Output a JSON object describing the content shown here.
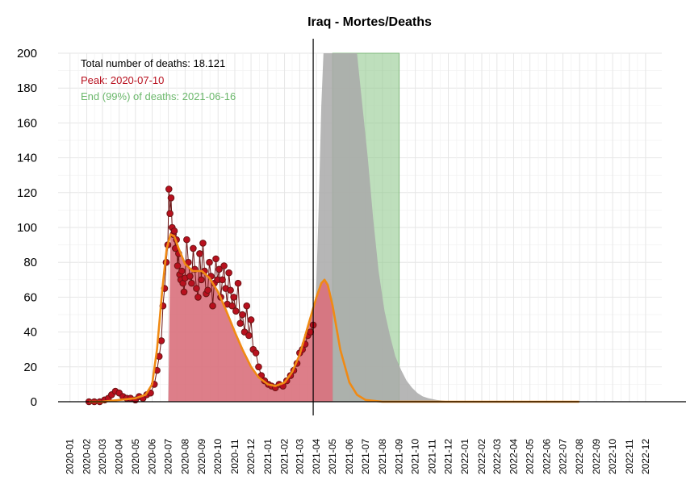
{
  "chart_data": {
    "type": "area",
    "title": "Iraq - Mortes/Deaths",
    "xlabel": "",
    "ylabel": "",
    "ylim": [
      0,
      200
    ],
    "xlim": [
      "2019-12-10",
      "2022-12-31"
    ],
    "y_ticks": [
      0,
      20,
      40,
      60,
      80,
      100,
      120,
      140,
      160,
      180,
      200
    ],
    "x_ticks": [
      "2020-01",
      "2020-02",
      "2020-03",
      "2020-04",
      "2020-05",
      "2020-06",
      "2020-07",
      "2020-08",
      "2020-09",
      "2020-10",
      "2020-11",
      "2020-12",
      "2021-01",
      "2021-02",
      "2021-03",
      "2021-04",
      "2021-05",
      "2021-06",
      "2021-07",
      "2021-08",
      "2021-09",
      "2021-10",
      "2021-11",
      "2021-12",
      "2022-01",
      "2022-02",
      "2022-03",
      "2022-04",
      "2022-05",
      "2022-06",
      "2022-07",
      "2022-08",
      "2022-09",
      "2022-10",
      "2022-11",
      "2022-12"
    ],
    "grid": true,
    "annotations": {
      "total": "Total number of deaths: 18.121",
      "peak": "Peak: 2020-07-10",
      "end": "End (99%) of deaths: 2021-06-16"
    },
    "current_date_line": "2021-03-26",
    "end_band": {
      "from": "2021-05-01",
      "to": "2021-09-01",
      "color": "#93c98f"
    },
    "colors": {
      "observed_fill": "#d9707c",
      "observed_points": "#b8101e",
      "observed_points_stroke": "#6b1414",
      "fit_line": "#f08a14",
      "projection_fill": "#a9a9a9",
      "end_band": "#93c98f",
      "annotation_total": "#000000",
      "annotation_peak": "#b8101e",
      "annotation_end": "#6cb86c"
    },
    "series": [
      {
        "name": "observed",
        "kind": "points",
        "points": [
          [
            "2020-02-05",
            0
          ],
          [
            "2020-02-15",
            0
          ],
          [
            "2020-02-25",
            0
          ],
          [
            "2020-03-05",
            1
          ],
          [
            "2020-03-12",
            2
          ],
          [
            "2020-03-18",
            4
          ],
          [
            "2020-03-25",
            6
          ],
          [
            "2020-04-01",
            5
          ],
          [
            "2020-04-08",
            3
          ],
          [
            "2020-04-15",
            2
          ],
          [
            "2020-04-22",
            2
          ],
          [
            "2020-05-01",
            1
          ],
          [
            "2020-05-08",
            3
          ],
          [
            "2020-05-15",
            2
          ],
          [
            "2020-05-22",
            4
          ],
          [
            "2020-05-29",
            5
          ],
          [
            "2020-06-05",
            10
          ],
          [
            "2020-06-10",
            18
          ],
          [
            "2020-06-14",
            26
          ],
          [
            "2020-06-18",
            35
          ],
          [
            "2020-06-21",
            55
          ],
          [
            "2020-06-24",
            65
          ],
          [
            "2020-06-27",
            80
          ],
          [
            "2020-06-30",
            90
          ],
          [
            "2020-07-02",
            122
          ],
          [
            "2020-07-04",
            108
          ],
          [
            "2020-07-06",
            117
          ],
          [
            "2020-07-08",
            100
          ],
          [
            "2020-07-10",
            96
          ],
          [
            "2020-07-12",
            98
          ],
          [
            "2020-07-14",
            88
          ],
          [
            "2020-07-16",
            93
          ],
          [
            "2020-07-18",
            78
          ],
          [
            "2020-07-20",
            85
          ],
          [
            "2020-07-22",
            73
          ],
          [
            "2020-07-24",
            70
          ],
          [
            "2020-07-26",
            75
          ],
          [
            "2020-07-28",
            68
          ],
          [
            "2020-07-30",
            63
          ],
          [
            "2020-08-01",
            71
          ],
          [
            "2020-08-04",
            93
          ],
          [
            "2020-08-07",
            80
          ],
          [
            "2020-08-10",
            72
          ],
          [
            "2020-08-13",
            68
          ],
          [
            "2020-08-16",
            88
          ],
          [
            "2020-08-19",
            76
          ],
          [
            "2020-08-22",
            65
          ],
          [
            "2020-08-25",
            60
          ],
          [
            "2020-08-28",
            85
          ],
          [
            "2020-08-31",
            70
          ],
          [
            "2020-09-03",
            91
          ],
          [
            "2020-09-06",
            75
          ],
          [
            "2020-09-09",
            62
          ],
          [
            "2020-09-12",
            64
          ],
          [
            "2020-09-15",
            80
          ],
          [
            "2020-09-18",
            72
          ],
          [
            "2020-09-21",
            55
          ],
          [
            "2020-09-24",
            68
          ],
          [
            "2020-09-27",
            82
          ],
          [
            "2020-09-30",
            70
          ],
          [
            "2020-10-03",
            76
          ],
          [
            "2020-10-06",
            60
          ],
          [
            "2020-10-09",
            70
          ],
          [
            "2020-10-12",
            78
          ],
          [
            "2020-10-15",
            65
          ],
          [
            "2020-10-18",
            56
          ],
          [
            "2020-10-21",
            74
          ],
          [
            "2020-10-24",
            64
          ],
          [
            "2020-10-27",
            55
          ],
          [
            "2020-10-30",
            60
          ],
          [
            "2020-11-03",
            52
          ],
          [
            "2020-11-07",
            68
          ],
          [
            "2020-11-11",
            45
          ],
          [
            "2020-11-15",
            50
          ],
          [
            "2020-11-19",
            40
          ],
          [
            "2020-11-23",
            55
          ],
          [
            "2020-11-27",
            38
          ],
          [
            "2020-12-01",
            47
          ],
          [
            "2020-12-05",
            30
          ],
          [
            "2020-12-10",
            28
          ],
          [
            "2020-12-15",
            20
          ],
          [
            "2020-12-20",
            15
          ],
          [
            "2020-12-26",
            12
          ],
          [
            "2021-01-02",
            10
          ],
          [
            "2021-01-08",
            9
          ],
          [
            "2021-01-15",
            8
          ],
          [
            "2021-01-22",
            10
          ],
          [
            "2021-01-29",
            9
          ],
          [
            "2021-02-05",
            12
          ],
          [
            "2021-02-12",
            15
          ],
          [
            "2021-02-18",
            18
          ],
          [
            "2021-02-24",
            22
          ],
          [
            "2021-03-01",
            28
          ],
          [
            "2021-03-06",
            30
          ],
          [
            "2021-03-11",
            33
          ],
          [
            "2021-03-16",
            38
          ],
          [
            "2021-03-21",
            40
          ],
          [
            "2021-03-26",
            44
          ]
        ]
      },
      {
        "name": "fit",
        "kind": "line",
        "points": [
          [
            "2020-02-05",
            0
          ],
          [
            "2020-03-01",
            0
          ],
          [
            "2020-04-01",
            1
          ],
          [
            "2020-05-01",
            2
          ],
          [
            "2020-05-20",
            4
          ],
          [
            "2020-06-01",
            10
          ],
          [
            "2020-06-10",
            30
          ],
          [
            "2020-06-20",
            65
          ],
          [
            "2020-06-28",
            88
          ],
          [
            "2020-07-05",
            96
          ],
          [
            "2020-07-12",
            95
          ],
          [
            "2020-07-20",
            88
          ],
          [
            "2020-08-01",
            79
          ],
          [
            "2020-08-15",
            75
          ],
          [
            "2020-09-01",
            75
          ],
          [
            "2020-09-15",
            71
          ],
          [
            "2020-10-01",
            63
          ],
          [
            "2020-10-15",
            53
          ],
          [
            "2020-11-01",
            40
          ],
          [
            "2020-11-15",
            30
          ],
          [
            "2020-12-01",
            20
          ],
          [
            "2020-12-15",
            14
          ],
          [
            "2021-01-01",
            10
          ],
          [
            "2021-01-15",
            9
          ],
          [
            "2021-02-01",
            11
          ],
          [
            "2021-02-15",
            17
          ],
          [
            "2021-03-01",
            27
          ],
          [
            "2021-03-15",
            42
          ],
          [
            "2021-04-01",
            60
          ],
          [
            "2021-04-10",
            68
          ],
          [
            "2021-04-16",
            70
          ],
          [
            "2021-04-22",
            67
          ],
          [
            "2021-05-01",
            55
          ],
          [
            "2021-05-15",
            30
          ],
          [
            "2021-06-01",
            11
          ],
          [
            "2021-06-15",
            4
          ],
          [
            "2021-07-01",
            1
          ],
          [
            "2021-08-01",
            0
          ],
          [
            "2022-07-31",
            0
          ]
        ]
      },
      {
        "name": "projection",
        "kind": "area",
        "points": [
          [
            "2021-03-26",
            30
          ],
          [
            "2021-04-01",
            70
          ],
          [
            "2021-04-05",
            110
          ],
          [
            "2021-04-10",
            170
          ],
          [
            "2021-04-14",
            200
          ],
          [
            "2021-06-15",
            200
          ],
          [
            "2021-06-25",
            170
          ],
          [
            "2021-07-05",
            140
          ],
          [
            "2021-07-15",
            105
          ],
          [
            "2021-07-25",
            75
          ],
          [
            "2021-08-05",
            52
          ],
          [
            "2021-08-15",
            38
          ],
          [
            "2021-08-25",
            26
          ],
          [
            "2021-09-05",
            18
          ],
          [
            "2021-09-15",
            12
          ],
          [
            "2021-09-25",
            8
          ],
          [
            "2021-10-05",
            5
          ],
          [
            "2021-10-15",
            3
          ],
          [
            "2021-10-25",
            2
          ],
          [
            "2021-11-10",
            1
          ],
          [
            "2021-12-10",
            0
          ]
        ]
      }
    ]
  }
}
